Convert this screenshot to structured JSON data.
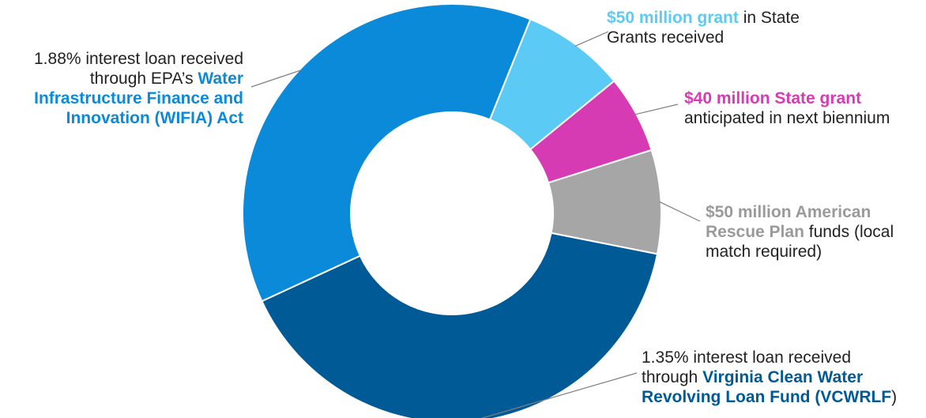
{
  "chart_data": {
    "type": "pie",
    "donut": true,
    "legend": "none",
    "slices": [
      {
        "value": 8,
        "color": "#5bcbf5",
        "label_bold": "$50 million grant",
        "label_rest": " in State Grants received"
      },
      {
        "value": 6,
        "color": "#d63bb4",
        "label_bold": "$40 million State grant",
        "label_rest": " anticipated in next biennium"
      },
      {
        "value": 8,
        "color": "#a6a6a6",
        "label_bold": "$50 million American Rescue Plan",
        "label_rest": " funds (local match required)"
      },
      {
        "value": 40,
        "color": "#005a96",
        "label_prefix": "1.35% interest loan received through ",
        "label_bold": "Virginia Clean Water Revolving Loan Fund (VCWRLF",
        "label_rest": ")"
      },
      {
        "value": 38,
        "color": "#0a8ad8",
        "label_prefix": "1.88% interest loan received through EPA’s ",
        "label_bold": "Water Infrastructure Finance and Innovation (WIFIA) Act",
        "label_rest": ""
      }
    ]
  }
}
